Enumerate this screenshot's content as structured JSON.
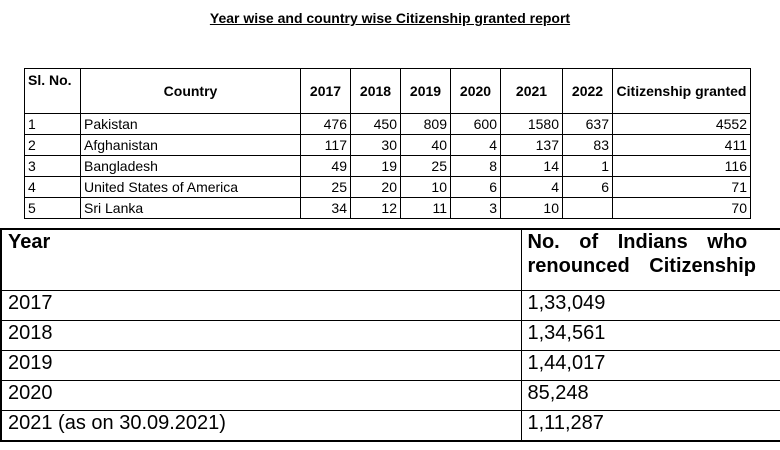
{
  "title": "Year wise and country wise Citizenship granted report",
  "table1": {
    "headers": [
      "Sl. No.",
      "Country",
      "2017",
      "2018",
      "2019",
      "2020",
      "2021",
      "2022",
      "Citizenship granted"
    ],
    "rows": [
      [
        "1",
        "Pakistan",
        "476",
        "450",
        "809",
        "600",
        "1580",
        "637",
        "4552"
      ],
      [
        "2",
        "Afghanistan",
        "117",
        "30",
        "40",
        "4",
        "137",
        "83",
        "411"
      ],
      [
        "3",
        "Bangladesh",
        "49",
        "19",
        "25",
        "8",
        "14",
        "1",
        "116"
      ],
      [
        "4",
        "United States of America",
        "25",
        "20",
        "10",
        "6",
        "4",
        "6",
        "71"
      ],
      [
        "5",
        "Sri Lanka",
        "34",
        "12",
        "11",
        "3",
        "10",
        "",
        "70"
      ]
    ]
  },
  "table2": {
    "headers": [
      "Year",
      "No. of Indians who renounced Citizenship"
    ],
    "rows": [
      [
        "2017",
        "1,33,049"
      ],
      [
        "2018",
        "1,34,561"
      ],
      [
        "2019",
        "1,44,017"
      ],
      [
        "2020",
        "85,248"
      ],
      [
        "2021  (as on 30.09.2021)",
        "1,11,287"
      ]
    ]
  }
}
